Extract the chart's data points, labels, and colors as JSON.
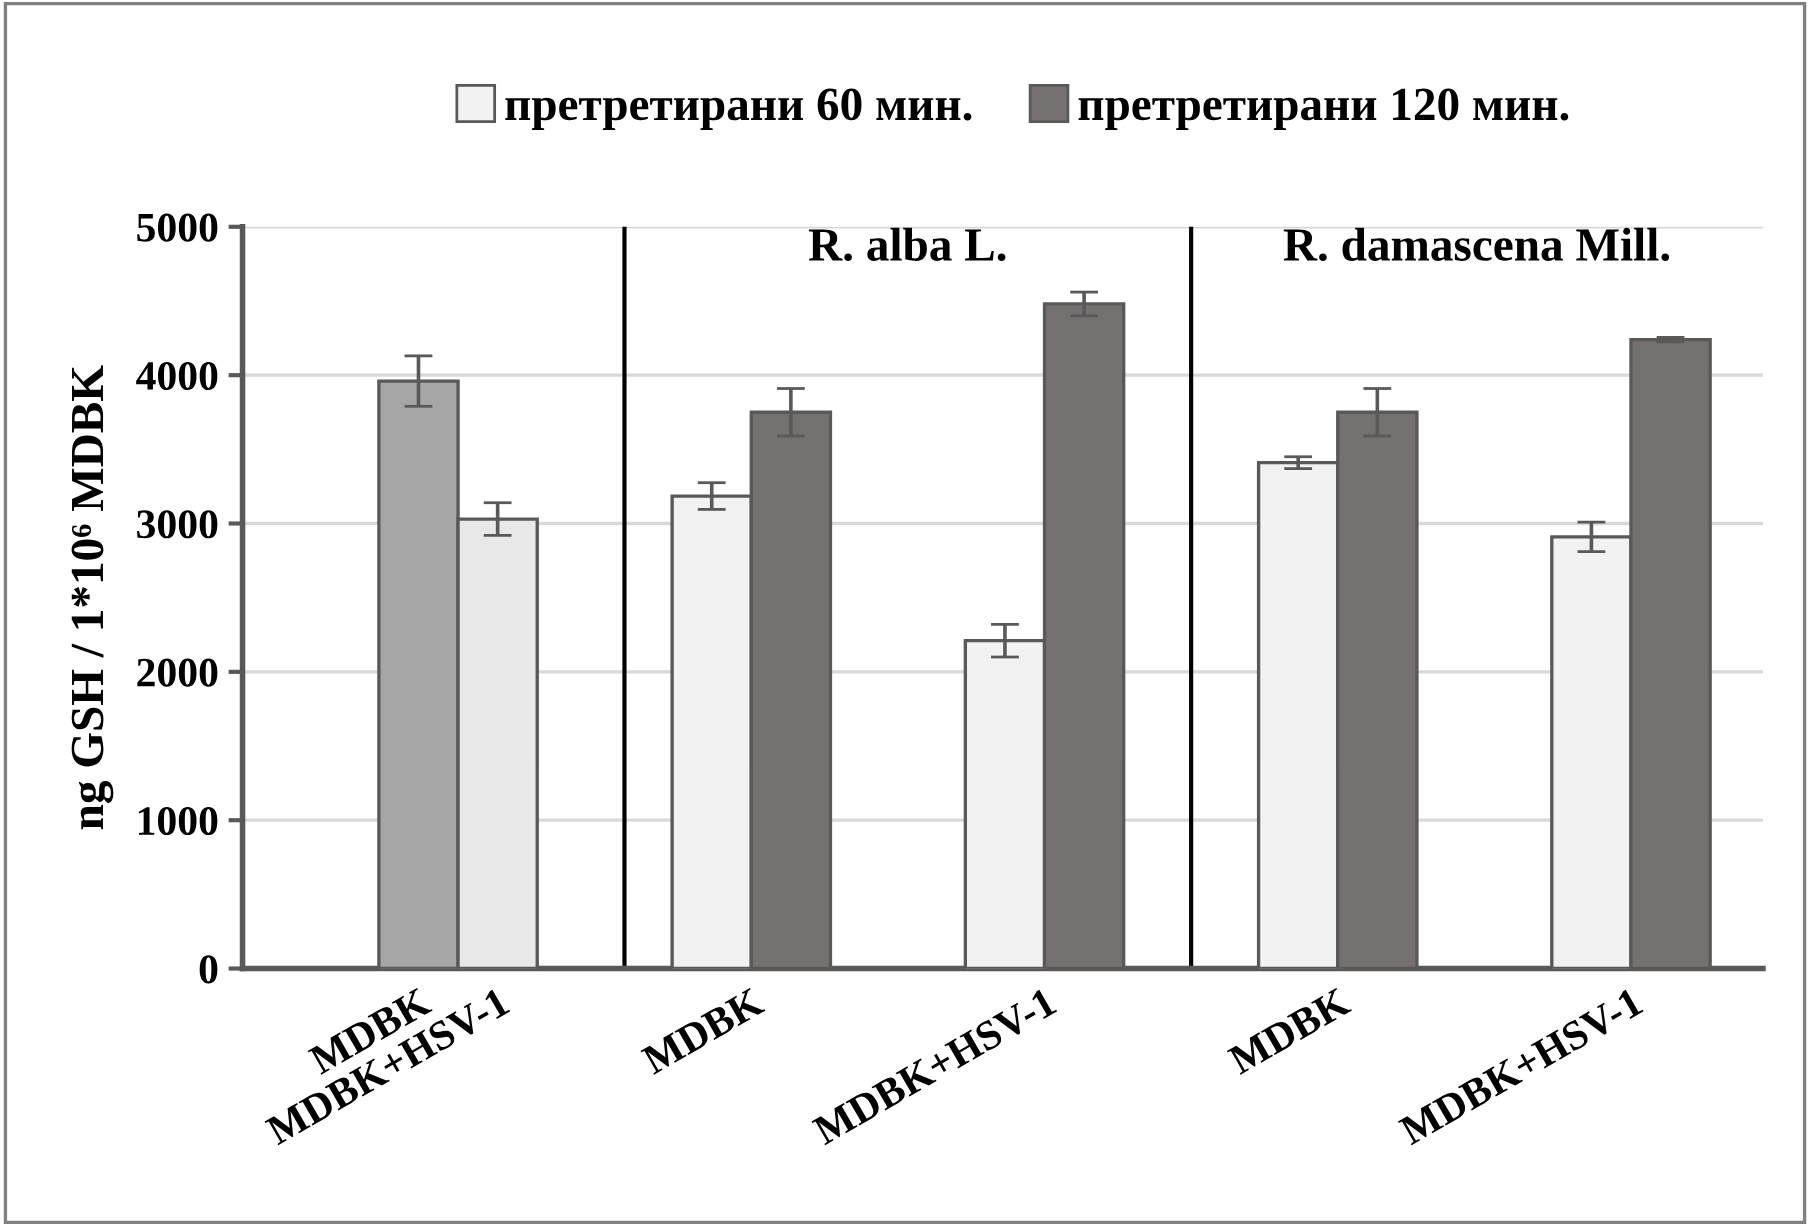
{
  "chart_data": {
    "type": "bar",
    "categories": [
      "MDBK",
      "MDBK+HSV-1",
      "MDBK",
      "MDBK+HSV-1",
      "MDBK",
      "MDBK+HSV-1"
    ],
    "series": [
      {
        "colors": [
          "#a6a6a6",
          "#e8e8e8",
          null,
          null,
          null,
          null
        ],
        "values": [
          3960,
          3030,
          null,
          null,
          null,
          null
        ],
        "errors": [
          170,
          110,
          null,
          null,
          null,
          null
        ]
      },
      {
        "name": "претретирани 60 мин.",
        "color": "#f2f2f2",
        "values": [
          null,
          null,
          3185,
          2210,
          3410,
          2910
        ],
        "errors": [
          null,
          null,
          90,
          110,
          40,
          100
        ]
      },
      {
        "name": "претретирани 120 мин.",
        "color": "#767171",
        "values": [
          null,
          null,
          3750,
          4480,
          3750,
          4240
        ],
        "errors": [
          null,
          null,
          160,
          80,
          160,
          15
        ]
      }
    ],
    "ylabel": "ng GSH / 1*10⁶ MDBK",
    "ylim": [
      0,
      5000
    ],
    "yticks": [
      0,
      1000,
      2000,
      3000,
      4000,
      5000
    ],
    "grid": "y",
    "legend": "top",
    "annotations": [
      "R. alba L.",
      "R. damascena Mill."
    ]
  }
}
